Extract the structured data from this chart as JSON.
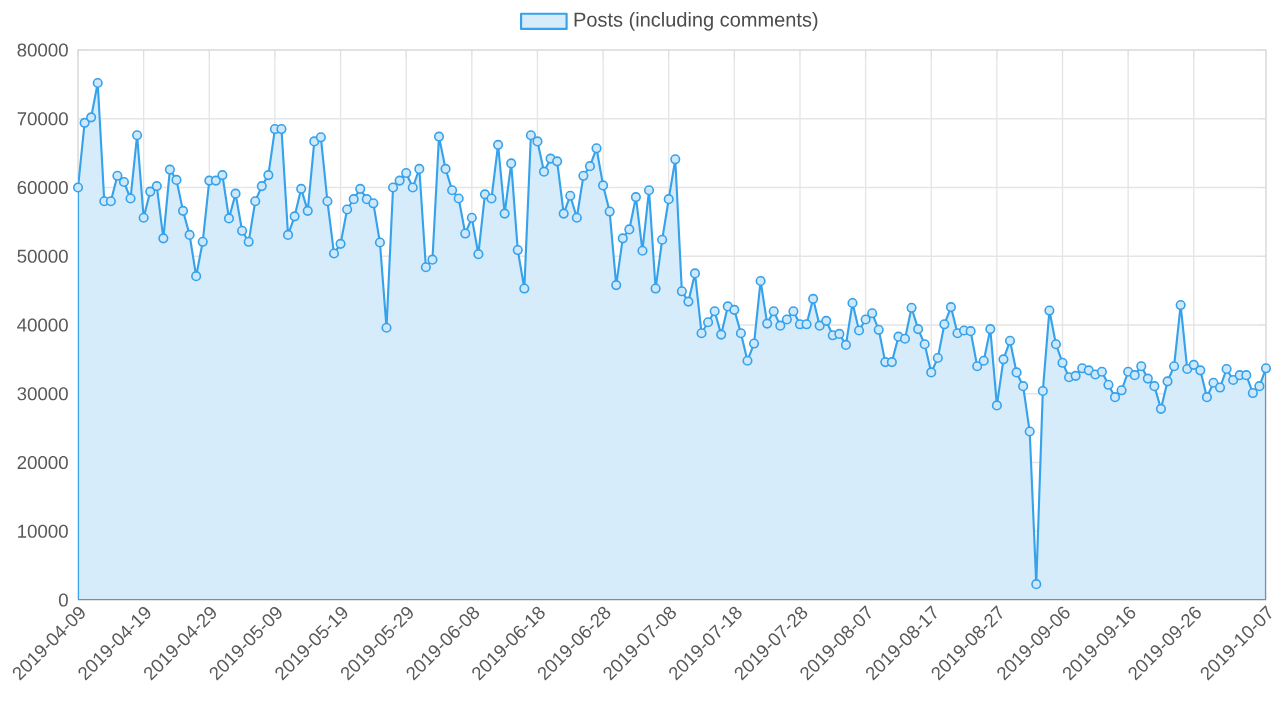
{
  "chart_data": {
    "type": "area",
    "x": [
      "2019-04-09",
      "2019-04-10",
      "2019-04-11",
      "2019-04-12",
      "2019-04-13",
      "2019-04-14",
      "2019-04-15",
      "2019-04-16",
      "2019-04-17",
      "2019-04-18",
      "2019-04-19",
      "2019-04-20",
      "2019-04-21",
      "2019-04-22",
      "2019-04-23",
      "2019-04-24",
      "2019-04-25",
      "2019-04-26",
      "2019-04-27",
      "2019-04-28",
      "2019-04-29",
      "2019-04-30",
      "2019-05-01",
      "2019-05-02",
      "2019-05-03",
      "2019-05-04",
      "2019-05-05",
      "2019-05-06",
      "2019-05-07",
      "2019-05-08",
      "2019-05-09",
      "2019-05-10",
      "2019-05-11",
      "2019-05-12",
      "2019-05-13",
      "2019-05-14",
      "2019-05-15",
      "2019-05-16",
      "2019-05-17",
      "2019-05-18",
      "2019-05-19",
      "2019-05-20",
      "2019-05-21",
      "2019-05-22",
      "2019-05-23",
      "2019-05-24",
      "2019-05-25",
      "2019-05-26",
      "2019-05-27",
      "2019-05-28",
      "2019-05-29",
      "2019-05-30",
      "2019-05-31",
      "2019-06-01",
      "2019-06-02",
      "2019-06-03",
      "2019-06-04",
      "2019-06-05",
      "2019-06-06",
      "2019-06-07",
      "2019-06-08",
      "2019-06-09",
      "2019-06-10",
      "2019-06-11",
      "2019-06-12",
      "2019-06-13",
      "2019-06-14",
      "2019-06-15",
      "2019-06-16",
      "2019-06-17",
      "2019-06-18",
      "2019-06-19",
      "2019-06-20",
      "2019-06-21",
      "2019-06-22",
      "2019-06-23",
      "2019-06-24",
      "2019-06-25",
      "2019-06-26",
      "2019-06-27",
      "2019-06-28",
      "2019-06-29",
      "2019-06-30",
      "2019-07-01",
      "2019-07-02",
      "2019-07-03",
      "2019-07-04",
      "2019-07-05",
      "2019-07-06",
      "2019-07-07",
      "2019-07-08",
      "2019-07-09",
      "2019-07-10",
      "2019-07-11",
      "2019-07-12",
      "2019-07-13",
      "2019-07-14",
      "2019-07-15",
      "2019-07-16",
      "2019-07-17",
      "2019-07-18",
      "2019-07-19",
      "2019-07-20",
      "2019-07-21",
      "2019-07-22",
      "2019-07-23",
      "2019-07-24",
      "2019-07-25",
      "2019-07-26",
      "2019-07-27",
      "2019-07-28",
      "2019-07-29",
      "2019-07-30",
      "2019-07-31",
      "2019-08-01",
      "2019-08-02",
      "2019-08-03",
      "2019-08-04",
      "2019-08-05",
      "2019-08-06",
      "2019-08-07",
      "2019-08-08",
      "2019-08-09",
      "2019-08-10",
      "2019-08-11",
      "2019-08-12",
      "2019-08-13",
      "2019-08-14",
      "2019-08-15",
      "2019-08-16",
      "2019-08-17",
      "2019-08-18",
      "2019-08-19",
      "2019-08-20",
      "2019-08-21",
      "2019-08-22",
      "2019-08-23",
      "2019-08-24",
      "2019-08-25",
      "2019-08-26",
      "2019-08-27",
      "2019-08-28",
      "2019-08-29",
      "2019-08-30",
      "2019-08-31",
      "2019-09-01",
      "2019-09-02",
      "2019-09-03",
      "2019-09-04",
      "2019-09-05",
      "2019-09-06",
      "2019-09-07",
      "2019-09-08",
      "2019-09-09",
      "2019-09-10",
      "2019-09-11",
      "2019-09-12",
      "2019-09-13",
      "2019-09-14",
      "2019-09-15",
      "2019-09-16",
      "2019-09-17",
      "2019-09-18",
      "2019-09-19",
      "2019-09-20",
      "2019-09-21",
      "2019-09-22",
      "2019-09-23",
      "2019-09-24",
      "2019-09-25",
      "2019-09-26",
      "2019-09-27",
      "2019-09-28",
      "2019-09-29",
      "2019-09-30",
      "2019-10-01",
      "2019-10-02",
      "2019-10-03",
      "2019-10-04",
      "2019-10-05",
      "2019-10-06",
      "2019-10-07"
    ],
    "series": [
      {
        "name": "Posts (including comments)",
        "color": "#36a2eb",
        "values": [
          60000,
          69400,
          70200,
          75200,
          58000,
          58000,
          61700,
          60800,
          58400,
          67600,
          55600,
          59400,
          60200,
          52600,
          62600,
          61100,
          56600,
          53100,
          47100,
          52100,
          61000,
          61000,
          61800,
          55500,
          59100,
          53700,
          52100,
          58000,
          60200,
          61800,
          68500,
          68500,
          53100,
          55800,
          59800,
          56600,
          66700,
          67300,
          58000,
          50400,
          51800,
          56800,
          58300,
          59800,
          58300,
          57700,
          52000,
          39600,
          60000,
          61000,
          62100,
          60000,
          62700,
          48400,
          49500,
          67400,
          62700,
          59600,
          58400,
          53300,
          55600,
          50300,
          59000,
          58400,
          66200,
          56200,
          63500,
          50900,
          45300,
          67600,
          66700,
          62300,
          64200,
          63800,
          56200,
          58800,
          55600,
          61700,
          63100,
          65700,
          60300,
          56500,
          45800,
          52600,
          53900,
          58600,
          50800,
          59600,
          45300,
          52400,
          58300,
          64100,
          44900,
          43400,
          47500,
          38800,
          40400,
          42000,
          38600,
          42700,
          42200,
          38800,
          34800,
          37300,
          46400,
          40200,
          42000,
          39900,
          40800,
          42000,
          40100,
          40100,
          43800,
          39900,
          40600,
          38500,
          38700,
          37100,
          43200,
          39200,
          40800,
          41700,
          39300,
          34600,
          34600,
          38300,
          38000,
          42500,
          39400,
          37200,
          33100,
          35200,
          40100,
          42600,
          38800,
          39200,
          39100,
          34000,
          34800,
          39400,
          28300,
          35000,
          37700,
          33100,
          31100,
          24500,
          2300,
          30400,
          42100,
          37200,
          34500,
          32400,
          32600,
          33700,
          33400,
          32800,
          33200,
          31300,
          29500,
          30500,
          33200,
          32700,
          34000,
          32200,
          31100,
          27800,
          31800,
          34000,
          42900,
          33600,
          34200,
          33400,
          29500,
          31600,
          30900,
          33600,
          32000,
          32700,
          32700,
          30100,
          31100,
          33700
        ]
      }
    ],
    "xlim": [
      "2019-04-09",
      "2019-10-07"
    ],
    "xticks": [
      "2019-04-09",
      "2019-04-19",
      "2019-04-29",
      "2019-05-09",
      "2019-05-19",
      "2019-05-29",
      "2019-06-08",
      "2019-06-18",
      "2019-06-28",
      "2019-07-08",
      "2019-07-18",
      "2019-07-28",
      "2019-08-07",
      "2019-08-17",
      "2019-08-27",
      "2019-09-06",
      "2019-09-16",
      "2019-09-26",
      "2019-10-07"
    ],
    "ylim": [
      0,
      80000
    ],
    "yticks": [
      0,
      10000,
      20000,
      30000,
      40000,
      50000,
      60000,
      70000,
      80000
    ],
    "grid": true,
    "legend": "top",
    "marker": "circle"
  }
}
